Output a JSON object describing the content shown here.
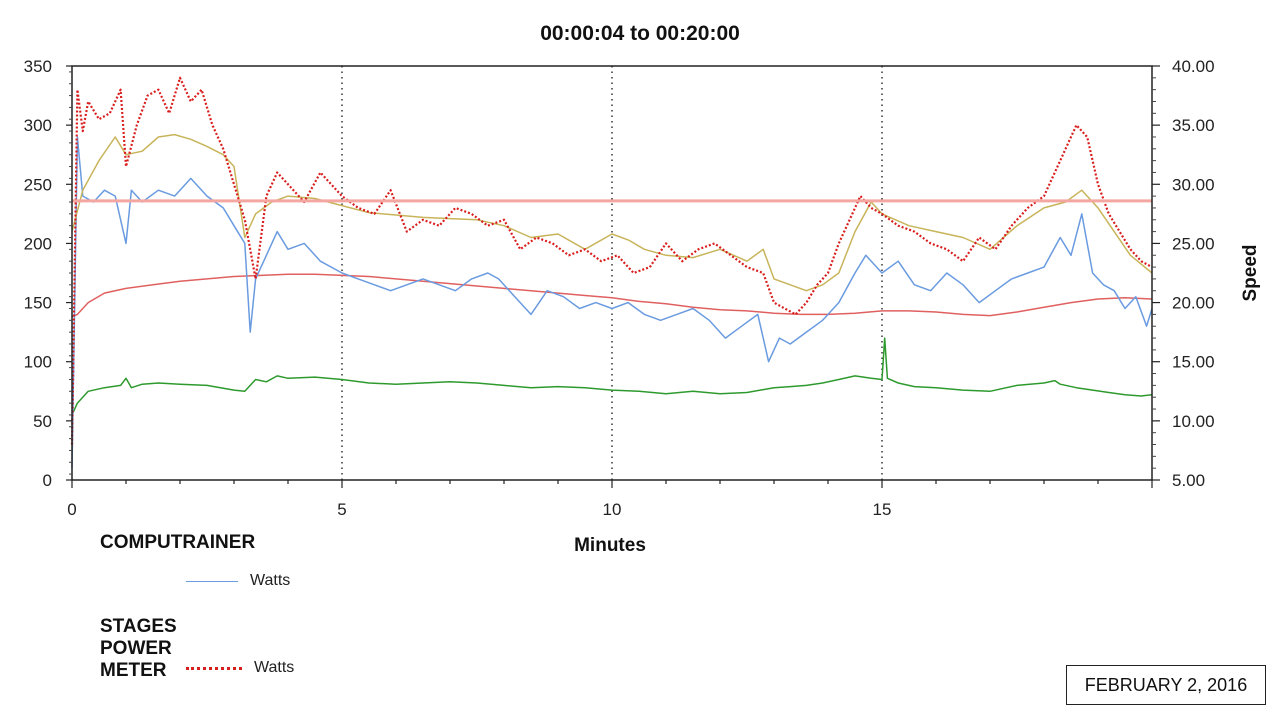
{
  "chart_data": {
    "type": "line",
    "title": "00:00:04 to 00:20:00",
    "xlabel": "Minutes",
    "ylabel_right": "Speed",
    "xlim": [
      0,
      20
    ],
    "ylim_left": [
      0,
      350
    ],
    "ylim_right": [
      5,
      40
    ],
    "x_ticks": [
      "0",
      "5",
      "10",
      "15"
    ],
    "y_left_ticks": [
      "0",
      "50",
      "100",
      "150",
      "200",
      "250",
      "300",
      "350"
    ],
    "y_right_ticks": [
      "5.00",
      "10.00",
      "15.00",
      "20.00",
      "25.00",
      "30.00",
      "35.00",
      "40.00"
    ],
    "vertical_gridlines": [
      5,
      10,
      15
    ],
    "grid_style": "dotted",
    "reference_line": {
      "axis": "left",
      "value": 236,
      "color": "#f4a6a0"
    },
    "series": [
      {
        "key": "stages_watts",
        "axis": "left",
        "color": "#d91e1e",
        "dashed": true,
        "x": [
          0,
          0.1,
          0.2,
          0.3,
          0.5,
          0.7,
          0.9,
          1.0,
          1.2,
          1.4,
          1.6,
          1.8,
          2.0,
          2.2,
          2.4,
          2.6,
          2.8,
          3.0,
          3.2,
          3.4,
          3.6,
          3.8,
          4.0,
          4.3,
          4.6,
          5.0,
          5.3,
          5.6,
          5.9,
          6.2,
          6.5,
          6.8,
          7.1,
          7.4,
          7.7,
          8.0,
          8.3,
          8.6,
          8.9,
          9.2,
          9.5,
          9.8,
          10.1,
          10.4,
          10.7,
          11.0,
          11.3,
          11.6,
          11.9,
          12.2,
          12.5,
          12.8,
          13.0,
          13.2,
          13.4,
          13.6,
          13.8,
          14.0,
          14.2,
          14.4,
          14.6,
          14.8,
          15.0,
          15.3,
          15.6,
          15.9,
          16.2,
          16.5,
          16.8,
          17.1,
          17.4,
          17.7,
          18.0,
          18.2,
          18.4,
          18.6,
          18.8,
          19.0,
          19.2,
          19.4,
          19.6,
          19.8,
          20.0
        ],
        "y": [
          30,
          330,
          295,
          320,
          305,
          310,
          330,
          265,
          300,
          325,
          330,
          310,
          340,
          320,
          330,
          300,
          280,
          250,
          220,
          170,
          240,
          260,
          250,
          235,
          260,
          240,
          230,
          225,
          245,
          210,
          220,
          215,
          230,
          225,
          215,
          220,
          195,
          205,
          200,
          190,
          195,
          185,
          190,
          175,
          180,
          200,
          185,
          195,
          200,
          190,
          180,
          175,
          150,
          145,
          140,
          150,
          165,
          175,
          200,
          220,
          240,
          230,
          225,
          215,
          210,
          200,
          195,
          185,
          205,
          195,
          215,
          230,
          240,
          260,
          280,
          300,
          290,
          250,
          225,
          210,
          195,
          185,
          180
        ]
      },
      {
        "key": "stages_speed",
        "axis": "right",
        "color": "#c8b45a",
        "x": [
          0,
          0.2,
          0.5,
          0.8,
          1.0,
          1.3,
          1.6,
          1.9,
          2.2,
          2.5,
          2.8,
          3.0,
          3.2,
          3.4,
          3.7,
          4.0,
          4.5,
          5.0,
          5.5,
          6.0,
          6.5,
          7.0,
          7.5,
          8.0,
          8.5,
          9.0,
          9.5,
          10.0,
          10.3,
          10.6,
          11.0,
          11.5,
          12.0,
          12.5,
          12.8,
          13.0,
          13.3,
          13.6,
          13.9,
          14.2,
          14.5,
          14.8,
          15.0,
          15.5,
          16.0,
          16.5,
          17.0,
          17.5,
          18.0,
          18.4,
          18.7,
          19.0,
          19.3,
          19.6,
          20.0
        ],
        "y": [
          26,
          29.5,
          32,
          34,
          32.5,
          32.8,
          34,
          34.2,
          33.8,
          33.2,
          32.5,
          31.5,
          25.5,
          27.5,
          28.5,
          29,
          28.8,
          28.2,
          27.6,
          27.4,
          27.2,
          27.1,
          27,
          26.5,
          25.5,
          25.8,
          24.5,
          25.8,
          25.3,
          24.5,
          24,
          23.8,
          24.5,
          23.5,
          24.5,
          22,
          21.5,
          21,
          21.5,
          22.5,
          26,
          28.5,
          27.5,
          26.5,
          26,
          25.5,
          24.5,
          26.5,
          28,
          28.5,
          29.5,
          28,
          26,
          24,
          22.5
        ]
      },
      {
        "key": "computrainer_watts",
        "axis": "left",
        "color": "#6a9be0",
        "x": [
          0,
          0.1,
          0.2,
          0.4,
          0.6,
          0.8,
          1.0,
          1.1,
          1.3,
          1.6,
          1.9,
          2.2,
          2.5,
          2.8,
          3.0,
          3.2,
          3.3,
          3.4,
          3.6,
          3.8,
          4.0,
          4.3,
          4.6,
          5.0,
          5.3,
          5.6,
          5.9,
          6.2,
          6.5,
          6.8,
          7.1,
          7.4,
          7.7,
          7.9,
          8.2,
          8.5,
          8.8,
          9.1,
          9.4,
          9.7,
          10.0,
          10.3,
          10.6,
          10.9,
          11.2,
          11.5,
          11.8,
          12.1,
          12.4,
          12.7,
          12.9,
          13.1,
          13.3,
          13.6,
          13.9,
          14.2,
          14.5,
          14.7,
          15.0,
          15.3,
          15.6,
          15.9,
          16.2,
          16.5,
          16.8,
          17.1,
          17.4,
          17.7,
          18.0,
          18.3,
          18.5,
          18.7,
          18.9,
          19.1,
          19.3,
          19.5,
          19.7,
          19.9,
          20.0
        ],
        "y": [
          10,
          290,
          240,
          235,
          245,
          240,
          200,
          245,
          235,
          245,
          240,
          255,
          240,
          230,
          215,
          200,
          125,
          170,
          190,
          210,
          195,
          200,
          185,
          175,
          170,
          165,
          160,
          165,
          170,
          165,
          160,
          170,
          175,
          170,
          155,
          140,
          160,
          155,
          145,
          150,
          145,
          150,
          140,
          135,
          140,
          145,
          135,
          120,
          130,
          140,
          100,
          120,
          115,
          125,
          135,
          150,
          175,
          190,
          175,
          185,
          165,
          160,
          175,
          165,
          150,
          160,
          170,
          175,
          180,
          205,
          190,
          225,
          175,
          165,
          160,
          145,
          155,
          130,
          145
        ]
      },
      {
        "key": "thin_red",
        "axis": "left",
        "color": "#e06060",
        "x": [
          0,
          0.1,
          0.3,
          0.6,
          1.0,
          1.5,
          2.0,
          2.5,
          3.0,
          3.5,
          4.0,
          4.5,
          5.0,
          5.5,
          6.0,
          6.5,
          7.0,
          7.5,
          8.0,
          8.5,
          9.0,
          9.5,
          10.0,
          10.5,
          11.0,
          11.5,
          12.0,
          12.5,
          13.0,
          13.5,
          14.0,
          14.5,
          15.0,
          15.5,
          16.0,
          16.5,
          17.0,
          17.5,
          18.0,
          18.5,
          19.0,
          19.5,
          20.0
        ],
        "y": [
          138,
          140,
          150,
          158,
          162,
          165,
          168,
          170,
          172,
          173,
          174,
          174,
          173,
          172,
          170,
          168,
          166,
          164,
          162,
          160,
          158,
          156,
          154,
          151,
          149,
          146,
          144,
          143,
          141,
          140,
          140,
          141,
          143,
          143,
          142,
          140,
          139,
          142,
          146,
          150,
          153,
          154,
          153
        ]
      },
      {
        "key": "green",
        "axis": "right",
        "color": "#2e9a2e",
        "x": [
          0,
          0.1,
          0.3,
          0.6,
          0.9,
          1.0,
          1.1,
          1.3,
          1.6,
          2.0,
          2.5,
          3.0,
          3.2,
          3.4,
          3.6,
          3.8,
          4.0,
          4.5,
          5.0,
          5.5,
          6.0,
          6.5,
          7.0,
          7.5,
          8.0,
          8.5,
          9.0,
          9.5,
          10.0,
          10.5,
          11.0,
          11.5,
          12.0,
          12.5,
          13.0,
          13.3,
          13.6,
          13.9,
          14.2,
          14.5,
          14.8,
          15.0,
          15.05,
          15.1,
          15.3,
          15.6,
          16.0,
          16.5,
          17.0,
          17.5,
          18.0,
          18.2,
          18.3,
          18.6,
          18.9,
          19.2,
          19.5,
          19.8,
          20.0
        ],
        "y": [
          10.5,
          11.5,
          12.5,
          12.8,
          13.0,
          13.6,
          12.8,
          13.1,
          13.2,
          13.1,
          13.0,
          12.6,
          12.5,
          13.5,
          13.3,
          13.8,
          13.6,
          13.7,
          13.5,
          13.2,
          13.1,
          13.2,
          13.3,
          13.2,
          13.0,
          12.8,
          12.9,
          12.8,
          12.6,
          12.5,
          12.3,
          12.5,
          12.3,
          12.4,
          12.8,
          12.9,
          13.0,
          13.2,
          13.5,
          13.8,
          13.6,
          13.5,
          17.0,
          13.6,
          13.2,
          12.9,
          12.8,
          12.6,
          12.5,
          13.0,
          13.2,
          13.4,
          13.1,
          12.8,
          12.6,
          12.4,
          12.2,
          12.1,
          12.2
        ]
      }
    ]
  },
  "legend": {
    "computrainer_heading": "COMPUTRAINER",
    "computrainer_entry": "Watts",
    "stages_heading": "STAGES POWER METER",
    "stages_entry": "Watts"
  },
  "date_label": "FEBRUARY 2, 2016"
}
